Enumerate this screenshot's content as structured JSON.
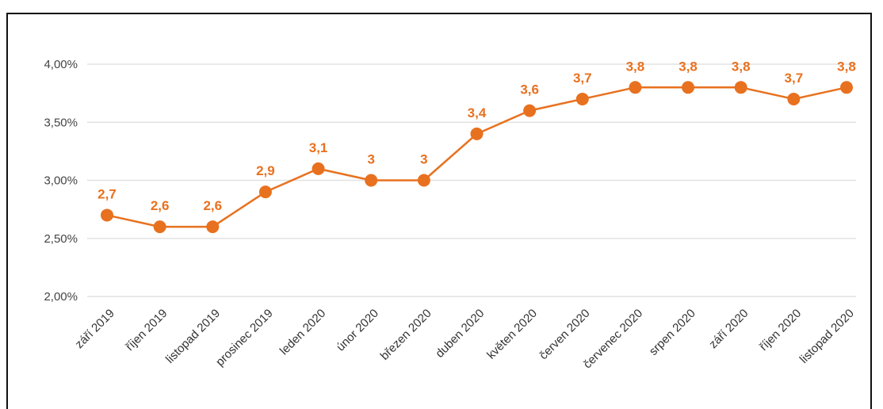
{
  "chart_data": {
    "type": "line",
    "categories": [
      "září 2019",
      "říjen 2019",
      "listopad 2019",
      "prosinec 2019",
      "leden 2020",
      "únor 2020",
      "březen 2020",
      "duben 2020",
      "květen 2020",
      "červen 2020",
      "červenec 2020",
      "srpen 2020",
      "září 2020",
      "říjen 2020",
      "listopad 2020"
    ],
    "values": [
      2.7,
      2.6,
      2.6,
      2.9,
      3.1,
      3.0,
      3.0,
      3.4,
      3.6,
      3.7,
      3.8,
      3.8,
      3.8,
      3.7,
      3.8
    ],
    "data_labels": [
      "2,7",
      "2,6",
      "2,6",
      "2,9",
      "3,1",
      "3",
      "3",
      "3,4",
      "3,6",
      "3,7",
      "3,8",
      "3,8",
      "3,8",
      "3,7",
      "3,8"
    ],
    "y_ticks": [
      2.0,
      2.5,
      3.0,
      3.5,
      4.0
    ],
    "y_tick_labels": [
      "2,00%",
      "2,50%",
      "3,00%",
      "3,50%",
      "4,00%"
    ],
    "ylim": [
      2.0,
      4.0
    ],
    "grid": true,
    "legend": "none",
    "title": "",
    "xlabel": "",
    "ylabel": "",
    "colors": {
      "line": "#E8711F",
      "grid": "#e2e2e2",
      "text": "#444444"
    }
  }
}
